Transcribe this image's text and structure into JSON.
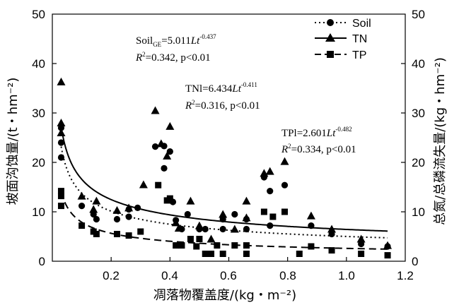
{
  "chart_data": {
    "type": "scatter",
    "xlabel": "凋落物覆盖度/(kg・m⁻²)",
    "ylabel_left": "坡面沟蚀量/(t・hm⁻²)",
    "ylabel_right": "总氮/总磷流失量/(kg・hm⁻²)",
    "xlim": [
      0,
      1.2
    ],
    "ylim_left": [
      0,
      50
    ],
    "ylim_right": [
      0,
      50
    ],
    "x_ticks": [
      "0.2",
      "0.4",
      "0.6",
      "0.8",
      "1.0",
      "1.2"
    ],
    "y_ticks": [
      "0",
      "10",
      "20",
      "30",
      "40",
      "50"
    ],
    "legend": {
      "placement": "top-right",
      "entries": [
        {
          "label": "Soil",
          "marker": "circle",
          "line": "dotted"
        },
        {
          "label": "TN",
          "marker": "triangle",
          "line": "solid"
        },
        {
          "label": "TP",
          "marker": "square",
          "line": "dashed"
        }
      ]
    },
    "annotations": [
      {
        "line1": "Soil",
        "sub": "GE",
        "eq": "=5.011",
        "var": "Lt",
        "exp": "-0.437",
        "line2": "=0.342,  p<0.01"
      },
      {
        "line1": "TNl",
        "sub": "",
        "eq": "=6.434",
        "var": "Lt",
        "exp": "-0.411",
        "line2": "=0.316,  p<0.01"
      },
      {
        "line1": "TPl",
        "sub": "",
        "eq": "=2.601",
        "var": "Lt",
        "exp": "-0.482",
        "line2": "=0.334,  p<0.01"
      }
    ],
    "series": [
      {
        "name": "Soil",
        "marker": "circle",
        "line": "dotted",
        "fit": {
          "a": 5.011,
          "b": -0.437
        },
        "points": [
          [
            0.03,
            27
          ],
          [
            0.03,
            24
          ],
          [
            0.03,
            21
          ],
          [
            0.1,
            11.2
          ],
          [
            0.14,
            9.5
          ],
          [
            0.15,
            8.5
          ],
          [
            0.22,
            8.5
          ],
          [
            0.26,
            10.5
          ],
          [
            0.26,
            9
          ],
          [
            0.29,
            10.8
          ],
          [
            0.35,
            23.2
          ],
          [
            0.38,
            18.8
          ],
          [
            0.38,
            23.3
          ],
          [
            0.4,
            22.2
          ],
          [
            0.41,
            12
          ],
          [
            0.42,
            8.3
          ],
          [
            0.44,
            6.5
          ],
          [
            0.46,
            9.5
          ],
          [
            0.5,
            6.5
          ],
          [
            0.52,
            6.5
          ],
          [
            0.58,
            8.5
          ],
          [
            0.58,
            6.5
          ],
          [
            0.62,
            9.5
          ],
          [
            0.66,
            8.5
          ],
          [
            0.66,
            6.5
          ],
          [
            0.72,
            17
          ],
          [
            0.74,
            14.2
          ],
          [
            0.74,
            7.2
          ],
          [
            0.79,
            15.4
          ],
          [
            0.88,
            7.2
          ],
          [
            0.95,
            5.5
          ],
          [
            1.05,
            3.5
          ],
          [
            1.14,
            3
          ]
        ]
      },
      {
        "name": "TN",
        "marker": "triangle",
        "line": "solid",
        "fit": {
          "a": 6.434,
          "b": -0.411
        },
        "points": [
          [
            0.03,
            36.3
          ],
          [
            0.03,
            28
          ],
          [
            0.03,
            26
          ],
          [
            0.1,
            13.2
          ],
          [
            0.14,
            10.5
          ],
          [
            0.15,
            12.2
          ],
          [
            0.22,
            10.3
          ],
          [
            0.26,
            10.8
          ],
          [
            0.31,
            15.5
          ],
          [
            0.35,
            30.5
          ],
          [
            0.37,
            23.8
          ],
          [
            0.39,
            21.3
          ],
          [
            0.4,
            27.3
          ],
          [
            0.42,
            7.8
          ],
          [
            0.43,
            6.7
          ],
          [
            0.47,
            12.2
          ],
          [
            0.5,
            7.2
          ],
          [
            0.54,
            4.5
          ],
          [
            0.58,
            9.5
          ],
          [
            0.62,
            6.5
          ],
          [
            0.66,
            8.8
          ],
          [
            0.66,
            12.2
          ],
          [
            0.72,
            17.8
          ],
          [
            0.74,
            18.2
          ],
          [
            0.79,
            20.2
          ],
          [
            0.88,
            9.2
          ],
          [
            0.95,
            6.5
          ],
          [
            1.05,
            4.5
          ],
          [
            1.14,
            3.2
          ]
        ]
      },
      {
        "name": "TP",
        "marker": "square",
        "line": "dashed",
        "fit": {
          "a": 2.601,
          "b": -0.482
        },
        "points": [
          [
            0.03,
            14.2
          ],
          [
            0.03,
            13.2
          ],
          [
            0.03,
            11.2
          ],
          [
            0.1,
            7.2
          ],
          [
            0.14,
            6
          ],
          [
            0.15,
            5.5
          ],
          [
            0.22,
            5.5
          ],
          [
            0.26,
            5.2
          ],
          [
            0.3,
            6
          ],
          [
            0.36,
            15.4
          ],
          [
            0.39,
            12.3
          ],
          [
            0.4,
            12.7
          ],
          [
            0.42,
            3.2
          ],
          [
            0.44,
            3.2
          ],
          [
            0.47,
            4.5
          ],
          [
            0.49,
            3
          ],
          [
            0.5,
            4.5
          ],
          [
            0.52,
            1.5
          ],
          [
            0.54,
            1.5
          ],
          [
            0.56,
            3.2
          ],
          [
            0.58,
            1.5
          ],
          [
            0.62,
            3.2
          ],
          [
            0.66,
            1.5
          ],
          [
            0.66,
            3.2
          ],
          [
            0.72,
            10
          ],
          [
            0.75,
            9
          ],
          [
            0.79,
            10
          ],
          [
            0.84,
            1.5
          ],
          [
            0.88,
            3
          ],
          [
            0.95,
            2.2
          ],
          [
            1.05,
            1.5
          ],
          [
            1.14,
            1.2
          ]
        ]
      }
    ]
  }
}
